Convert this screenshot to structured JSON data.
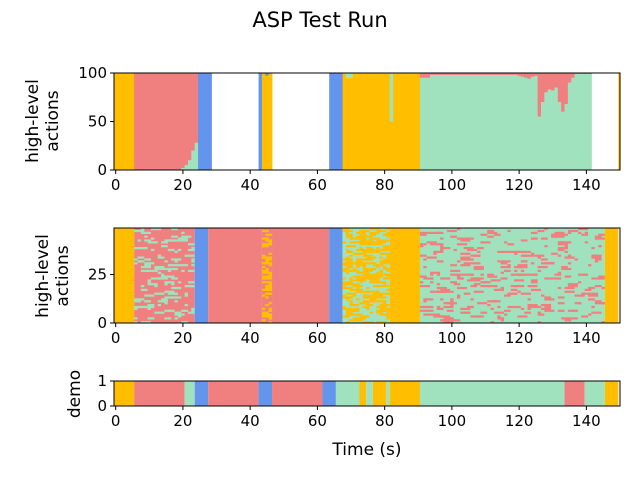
{
  "figure": {
    "title": "ASP Test Run",
    "xlabel": "Time (s)"
  },
  "colors": {
    "red": "#f08080",
    "green": "#a0e2be",
    "blue": "#6495ed",
    "gold": "#ffbf00"
  },
  "chart_data": [
    {
      "type": "area",
      "panel": "stacked-percentage",
      "ylabel": "high-level actions",
      "xlim": [
        -0.5,
        150
      ],
      "ylim": [
        0,
        100
      ],
      "xticks": [
        "0",
        "20",
        "40",
        "60",
        "80",
        "100",
        "120",
        "140"
      ],
      "yticks": [
        "0",
        "50",
        "100"
      ],
      "x_start": 0,
      "x_step": 1,
      "series": [
        {
          "color": "gold",
          "values": [
            100,
            100,
            100,
            100,
            100,
            100,
            0,
            0,
            0,
            0,
            0,
            0,
            0,
            0,
            0,
            0,
            0,
            0,
            0,
            0,
            0,
            0,
            0,
            0,
            0,
            0,
            0,
            0,
            0,
            0,
            0,
            0,
            0,
            0,
            0,
            0,
            0,
            0,
            0,
            0,
            0,
            0,
            0,
            0,
            100,
            97,
            100,
            0,
            0,
            0,
            0,
            0,
            0,
            0,
            0,
            0,
            0,
            0,
            0,
            0,
            0,
            0,
            0,
            0,
            0,
            0,
            0,
            0,
            100,
            95,
            95,
            100,
            100,
            100,
            100,
            100,
            100,
            100,
            100,
            100,
            100,
            100,
            50,
            100,
            100,
            100,
            100,
            100,
            100,
            100,
            100,
            0,
            0,
            0,
            0,
            0,
            0,
            0,
            0,
            0,
            0,
            0,
            0,
            0,
            0,
            0,
            0,
            0,
            0,
            0,
            0,
            0,
            0,
            0,
            0,
            0,
            0,
            0,
            0,
            0,
            0,
            0,
            0,
            0,
            0,
            0,
            0,
            0,
            0,
            0,
            0,
            0,
            0,
            0,
            0,
            0,
            0,
            0,
            0,
            0,
            0,
            0,
            0,
            0,
            0,
            0,
            0,
            0,
            0,
            0,
            100,
            100,
            100,
            100,
            100
          ]
        },
        {
          "color": "green",
          "values": [
            0,
            0,
            0,
            0,
            0,
            0,
            0,
            0,
            0,
            0,
            0,
            0,
            0,
            0,
            0,
            0,
            0,
            0,
            0,
            0,
            2,
            5,
            10,
            20,
            28,
            0,
            0,
            0,
            0,
            0,
            0,
            0,
            0,
            0,
            0,
            0,
            0,
            0,
            0,
            0,
            0,
            0,
            0,
            0,
            0,
            0,
            0,
            0,
            0,
            0,
            0,
            0,
            0,
            0,
            0,
            0,
            0,
            0,
            0,
            0,
            0,
            0,
            0,
            0,
            0,
            0,
            0,
            0,
            0,
            5,
            5,
            0,
            0,
            0,
            0,
            0,
            0,
            0,
            0,
            0,
            0,
            0,
            50,
            0,
            0,
            0,
            0,
            0,
            0,
            0,
            0,
            95,
            95,
            95,
            98,
            98,
            98,
            98,
            98,
            98,
            98,
            98,
            98,
            98,
            98,
            98,
            98,
            98,
            98,
            98,
            98,
            98,
            98,
            98,
            98,
            98,
            98,
            98,
            98,
            98,
            97,
            96,
            95,
            94,
            96,
            97,
            55,
            70,
            80,
            83,
            82,
            85,
            70,
            60,
            68,
            90,
            95,
            99,
            99,
            99,
            99,
            99,
            0,
            0,
            0,
            0,
            0
          ]
        },
        {
          "color": "red",
          "values": [
            0,
            0,
            0,
            0,
            0,
            0,
            100,
            100,
            100,
            100,
            100,
            100,
            100,
            100,
            100,
            100,
            100,
            100,
            100,
            100,
            98,
            95,
            90,
            80,
            72,
            0,
            0,
            0,
            0,
            0,
            0,
            0,
            0,
            0,
            0,
            0,
            0,
            0,
            0,
            0,
            0,
            0,
            0,
            0,
            0,
            0,
            0,
            0,
            0,
            0,
            0,
            0,
            0,
            0,
            0,
            0,
            0,
            0,
            0,
            0,
            0,
            0,
            0,
            0,
            0,
            0,
            0,
            0,
            0,
            0,
            0,
            0,
            0,
            0,
            0,
            0,
            0,
            0,
            0,
            0,
            0,
            0,
            0,
            0,
            0,
            0,
            0,
            0,
            0,
            0,
            0,
            5,
            5,
            5,
            2,
            2,
            2,
            2,
            2,
            2,
            2,
            2,
            2,
            2,
            2,
            2,
            2,
            2,
            2,
            2,
            2,
            2,
            2,
            2,
            2,
            2,
            2,
            2,
            2,
            2,
            3,
            4,
            5,
            6,
            4,
            3,
            45,
            30,
            20,
            17,
            18,
            15,
            30,
            40,
            32,
            10,
            5,
            1,
            1,
            1,
            1,
            1,
            0,
            0,
            0,
            0,
            0
          ]
        },
        {
          "color": "blue",
          "values": [
            0,
            0,
            0,
            0,
            0,
            0,
            0,
            0,
            0,
            0,
            0,
            0,
            0,
            0,
            0,
            0,
            0,
            0,
            0,
            0,
            0,
            0,
            0,
            0,
            0,
            100,
            100,
            100,
            100,
            0,
            0,
            0,
            0,
            0,
            0,
            0,
            0,
            0,
            0,
            0,
            0,
            0,
            0,
            100,
            0,
            3,
            0,
            0,
            0,
            0,
            0,
            0,
            0,
            0,
            0,
            0,
            0,
            0,
            0,
            0,
            0,
            0,
            0,
            0,
            100,
            100,
            100,
            100,
            0,
            0,
            0,
            0,
            0,
            0,
            0,
            0,
            0,
            0,
            0,
            0,
            0,
            0,
            0,
            0,
            0,
            0,
            0,
            0,
            0,
            0,
            0,
            0,
            0,
            0,
            0,
            0,
            0,
            0,
            0,
            0,
            0,
            0,
            0,
            0,
            0,
            0,
            0,
            0,
            0,
            0,
            0,
            0,
            0,
            0,
            0,
            0,
            0,
            0,
            0,
            0,
            0,
            0,
            0,
            0,
            0,
            0,
            0,
            0,
            0,
            0,
            0,
            0,
            0,
            0,
            0,
            0,
            0,
            0,
            0,
            0,
            0,
            0,
            0,
            0,
            0,
            0,
            0,
            0,
            0,
            0
          ]
        }
      ]
    },
    {
      "type": "heatmap",
      "panel": "rollout-grid",
      "ylabel": "high-level actions",
      "xlim": [
        -0.5,
        150
      ],
      "ylim": [
        0,
        49
      ],
      "xticks": [
        "0",
        "20",
        "40",
        "60",
        "80",
        "100",
        "120",
        "140"
      ],
      "yticks": [
        "0",
        "25"
      ],
      "segments": [
        {
          "start": 0,
          "end": 6,
          "color": "gold"
        },
        {
          "start": 6,
          "end": 24,
          "color": "red",
          "mix": "green"
        },
        {
          "start": 24,
          "end": 28,
          "color": "blue"
        },
        {
          "start": 28,
          "end": 44,
          "color": "red"
        },
        {
          "start": 44,
          "end": 47,
          "color": "red",
          "mix": "gold"
        },
        {
          "start": 47,
          "end": 64,
          "color": "red"
        },
        {
          "start": 64,
          "end": 68,
          "color": "blue"
        },
        {
          "start": 68,
          "end": 82,
          "color": "green",
          "mix": "gold"
        },
        {
          "start": 82,
          "end": 91,
          "color": "gold"
        },
        {
          "start": 91,
          "end": 146,
          "color": "green",
          "mix": "red"
        },
        {
          "start": 146,
          "end": 150,
          "color": "gold"
        }
      ]
    },
    {
      "type": "heatmap",
      "panel": "demo",
      "ylabel": "demo",
      "xlim": [
        -0.5,
        150
      ],
      "ylim": [
        0,
        1
      ],
      "xticks": [
        "0",
        "20",
        "40",
        "60",
        "80",
        "100",
        "120",
        "140"
      ],
      "yticks": [
        "0",
        "1"
      ],
      "segments": [
        {
          "start": 0,
          "end": 6,
          "color": "gold"
        },
        {
          "start": 6,
          "end": 21,
          "color": "red"
        },
        {
          "start": 21,
          "end": 24,
          "color": "green"
        },
        {
          "start": 24,
          "end": 28,
          "color": "blue"
        },
        {
          "start": 28,
          "end": 43,
          "color": "red"
        },
        {
          "start": 43,
          "end": 47,
          "color": "blue"
        },
        {
          "start": 47,
          "end": 62,
          "color": "red"
        },
        {
          "start": 62,
          "end": 66,
          "color": "blue"
        },
        {
          "start": 66,
          "end": 73,
          "color": "green"
        },
        {
          "start": 73,
          "end": 75,
          "color": "gold"
        },
        {
          "start": 75,
          "end": 77,
          "color": "green"
        },
        {
          "start": 77,
          "end": 81,
          "color": "gold"
        },
        {
          "start": 81,
          "end": 82,
          "color": "green"
        },
        {
          "start": 82,
          "end": 91,
          "color": "gold"
        },
        {
          "start": 91,
          "end": 134,
          "color": "green"
        },
        {
          "start": 134,
          "end": 140,
          "color": "red"
        },
        {
          "start": 140,
          "end": 146,
          "color": "green"
        },
        {
          "start": 146,
          "end": 150,
          "color": "gold"
        }
      ]
    }
  ]
}
